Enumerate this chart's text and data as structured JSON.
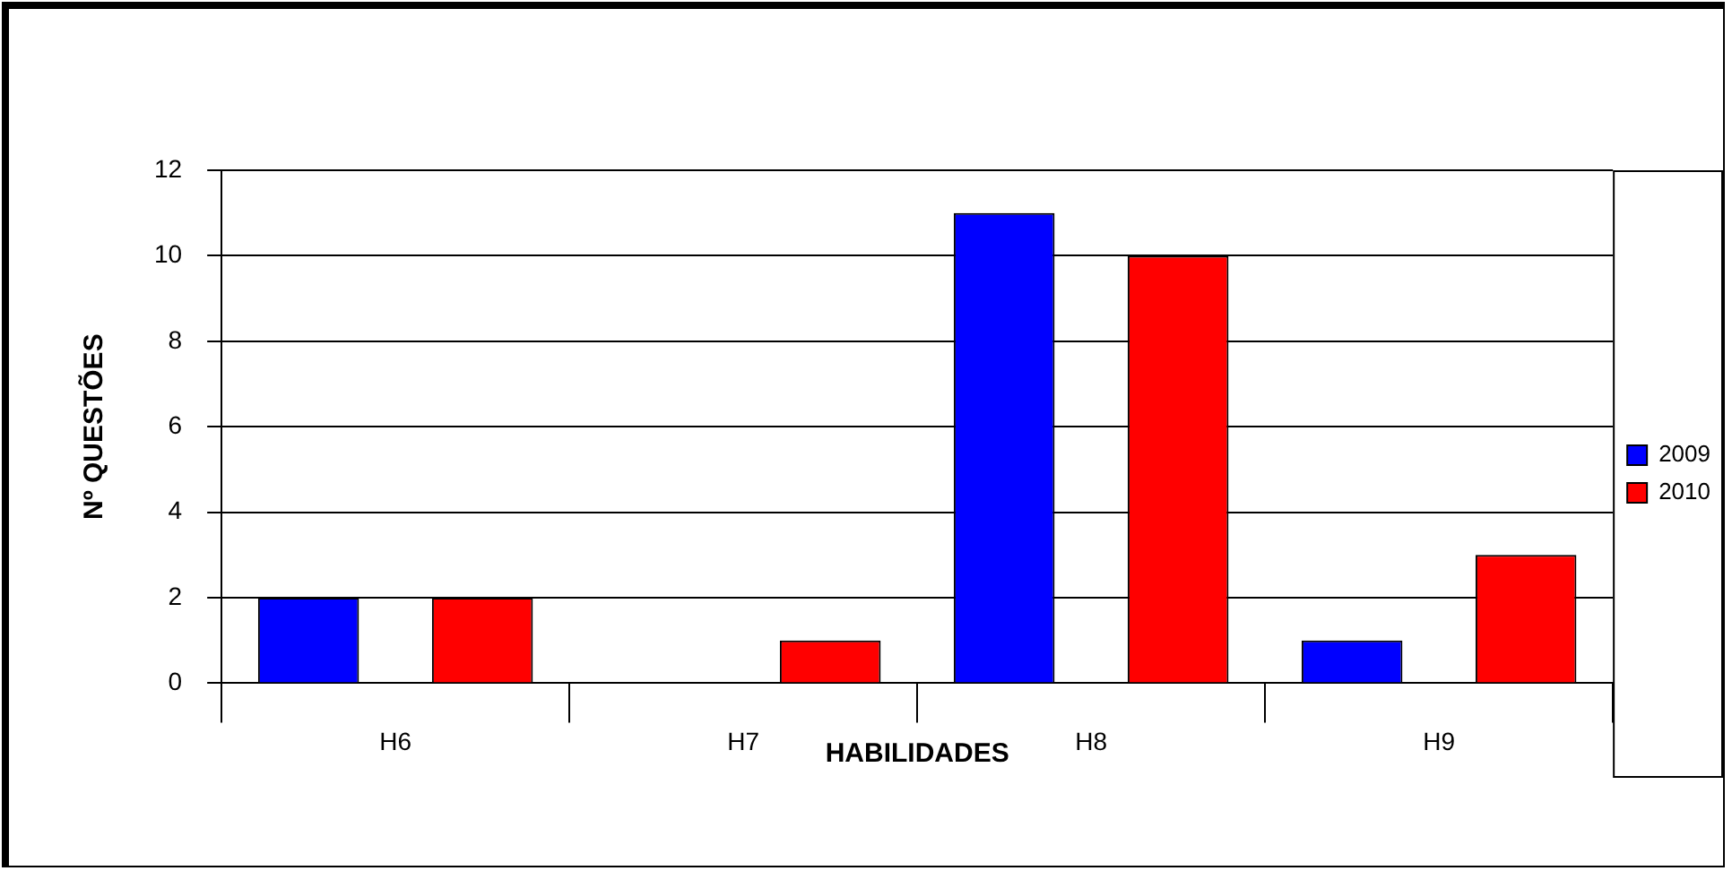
{
  "chart_data": {
    "type": "bar",
    "xlabel": "HABILIDADES",
    "ylabel": "Nº QUESTÕES",
    "categories": [
      "H6",
      "H7",
      "H8",
      "H9"
    ],
    "series": [
      {
        "name": "2009",
        "color": "#0000ff",
        "values": [
          2,
          0,
          11,
          1
        ]
      },
      {
        "name": "2010",
        "color": "#ff0000",
        "values": [
          2,
          1,
          10,
          3
        ]
      }
    ],
    "ylim": [
      0,
      12
    ],
    "yticks": [
      0,
      2,
      4,
      6,
      8,
      10,
      12
    ],
    "grid": "y",
    "legend": "right"
  }
}
